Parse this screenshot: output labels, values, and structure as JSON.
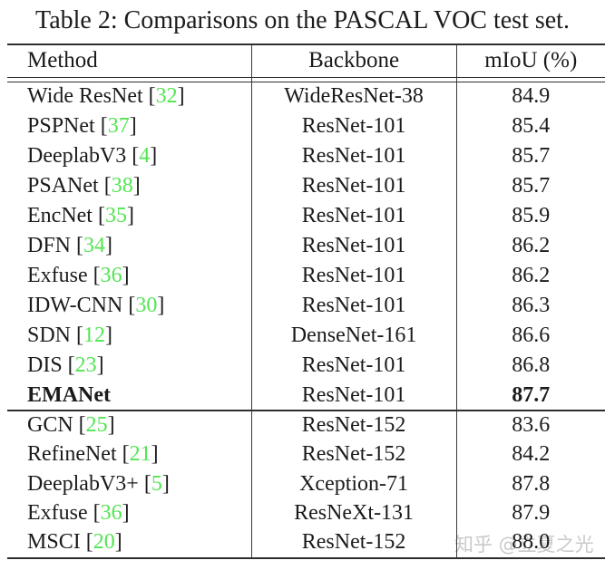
{
  "title": "Table 2: Comparisons on the PASCAL VOC test set.",
  "watermark": "知乎 @立夏之光",
  "colors": {
    "citation_green": "#53e553",
    "text": "#1b1b1b",
    "rule": "#2e2e2e",
    "watermark_gray": "#c9c9c9"
  },
  "table": {
    "headers": [
      "Method",
      "Backbone",
      "mIoU (%)"
    ],
    "cite_brackets": [
      "[",
      "]"
    ],
    "groups": [
      {
        "rows": [
          {
            "method": "Wide ResNet",
            "cite": "32",
            "backbone": "WideResNet-38",
            "miou": "84.9",
            "bold": false
          },
          {
            "method": "PSPNet",
            "cite": "37",
            "backbone": "ResNet-101",
            "miou": "85.4",
            "bold": false
          },
          {
            "method": "DeeplabV3",
            "cite": "4",
            "backbone": "ResNet-101",
            "miou": "85.7",
            "bold": false
          },
          {
            "method": "PSANet",
            "cite": "38",
            "backbone": "ResNet-101",
            "miou": "85.7",
            "bold": false
          },
          {
            "method": "EncNet",
            "cite": "35",
            "backbone": "ResNet-101",
            "miou": "85.9",
            "bold": false
          },
          {
            "method": "DFN",
            "cite": "34",
            "backbone": "ResNet-101",
            "miou": "86.2",
            "bold": false
          },
          {
            "method": "Exfuse",
            "cite": "36",
            "backbone": "ResNet-101",
            "miou": "86.2",
            "bold": false
          },
          {
            "method": "IDW-CNN",
            "cite": "30",
            "backbone": "ResNet-101",
            "miou": "86.3",
            "bold": false
          },
          {
            "method": "SDN",
            "cite": "12",
            "backbone": "DenseNet-161",
            "miou": "86.6",
            "bold": false
          },
          {
            "method": "DIS",
            "cite": "23",
            "backbone": "ResNet-101",
            "miou": "86.8",
            "bold": false
          },
          {
            "method": "EMANet",
            "cite": null,
            "backbone": "ResNet-101",
            "miou": "87.7",
            "bold": true
          }
        ]
      },
      {
        "rows": [
          {
            "method": "GCN",
            "cite": "25",
            "backbone": "ResNet-152",
            "miou": "83.6",
            "bold": false
          },
          {
            "method": "RefineNet",
            "cite": "21",
            "backbone": "ResNet-152",
            "miou": "84.2",
            "bold": false
          },
          {
            "method": "DeeplabV3+",
            "cite": "5",
            "backbone": "Xception-71",
            "miou": "87.8",
            "bold": false
          },
          {
            "method": "Exfuse",
            "cite": "36",
            "backbone": "ResNeXt-131",
            "miou": "87.9",
            "bold": false
          },
          {
            "method": "MSCI",
            "cite": "20",
            "backbone": "ResNet-152",
            "miou": "88.0",
            "bold": false
          }
        ]
      }
    ]
  }
}
